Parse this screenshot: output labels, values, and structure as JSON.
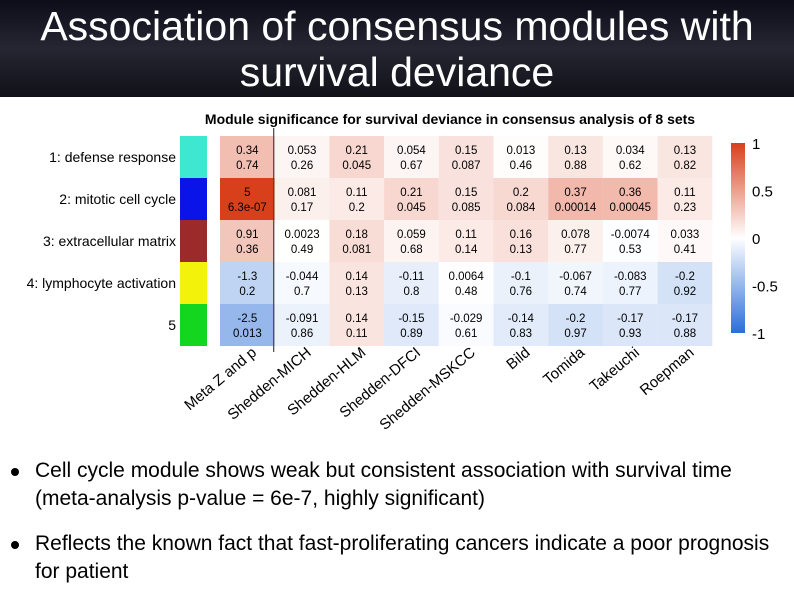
{
  "slide": {
    "title_line_1": "Association of consensus modules with",
    "title_line_2": "survival deviance",
    "bullets": [
      "Cell cycle module shows weak but consistent association with survival time (meta-analysis p-value = 6e-7, highly significant)",
      "Reflects the known fact that fast-proliferating cancers indicate a poor prognosis for patient"
    ]
  },
  "chart_data": {
    "type": "heatmap",
    "title": "Module significance for survival deviance in consensus analysis of 8 sets",
    "columns": [
      "Meta Z and p",
      "Shedden-MICH",
      "Shedden-HLM",
      "Shedden-DFCI",
      "Shedden-MSKCC",
      "Bild",
      "Tomida",
      "Takeuchi",
      "Roepman"
    ],
    "rows": [
      {
        "label": "1: defense response",
        "module_color": "#3ee8d0",
        "cells": [
          [
            "0.34",
            "0.74"
          ],
          [
            "0.053",
            "0.26"
          ],
          [
            "0.21",
            "0.045"
          ],
          [
            "0.054",
            "0.67"
          ],
          [
            "0.15",
            "0.087"
          ],
          [
            "0.013",
            "0.46"
          ],
          [
            "0.13",
            "0.88"
          ],
          [
            "0.034",
            "0.62"
          ],
          [
            "0.13",
            "0.82"
          ]
        ],
        "z": [
          0.34,
          0.053,
          0.21,
          0.054,
          0.15,
          0.013,
          0.13,
          0.034,
          0.13
        ]
      },
      {
        "label": "2: mitotic cell cycle",
        "module_color": "#0a14e8",
        "cells": [
          [
            "5",
            "6.3e-07"
          ],
          [
            "0.081",
            "0.17"
          ],
          [
            "0.11",
            "0.2"
          ],
          [
            "0.21",
            "0.045"
          ],
          [
            "0.15",
            "0.085"
          ],
          [
            "0.2",
            "0.084"
          ],
          [
            "0.37",
            "0.00014"
          ],
          [
            "0.36",
            "0.00045"
          ],
          [
            "0.11",
            "0.23"
          ]
        ],
        "z": [
          1.0,
          0.081,
          0.11,
          0.21,
          0.15,
          0.2,
          0.37,
          0.36,
          0.11
        ]
      },
      {
        "label": "3: extracellular matrix",
        "module_color": "#9c2a2a",
        "cells": [
          [
            "0.91",
            "0.36"
          ],
          [
            "0.0023",
            "0.49"
          ],
          [
            "0.18",
            "0.081"
          ],
          [
            "0.059",
            "0.68"
          ],
          [
            "0.11",
            "0.14"
          ],
          [
            "0.16",
            "0.13"
          ],
          [
            "0.078",
            "0.77"
          ],
          [
            "-0.0074",
            "0.53"
          ],
          [
            "0.033",
            "0.41"
          ]
        ],
        "z": [
          0.3,
          0.0023,
          0.18,
          0.059,
          0.11,
          0.16,
          0.078,
          -0.0074,
          0.033
        ]
      },
      {
        "label": "4: lymphocyte activation",
        "module_color": "#f2f20a",
        "cells": [
          [
            "-1.3",
            "0.2"
          ],
          [
            "-0.044",
            "0.7"
          ],
          [
            "0.14",
            "0.13"
          ],
          [
            "-0.11",
            "0.8"
          ],
          [
            "0.0064",
            "0.48"
          ],
          [
            "-0.1",
            "0.76"
          ],
          [
            "-0.067",
            "0.74"
          ],
          [
            "-0.083",
            "0.77"
          ],
          [
            "-0.2",
            "0.92"
          ]
        ],
        "z": [
          -0.3,
          -0.044,
          0.14,
          -0.11,
          0.0064,
          -0.1,
          -0.067,
          -0.083,
          -0.2
        ]
      },
      {
        "label": "5",
        "module_color": "#14d61e",
        "cells": [
          [
            "-2.5",
            "0.013"
          ],
          [
            "-0.091",
            "0.86"
          ],
          [
            "0.14",
            "0.11"
          ],
          [
            "-0.15",
            "0.89"
          ],
          [
            "-0.029",
            "0.61"
          ],
          [
            "-0.14",
            "0.83"
          ],
          [
            "-0.2",
            "0.97"
          ],
          [
            "-0.17",
            "0.93"
          ],
          [
            "-0.17",
            "0.88"
          ]
        ],
        "z": [
          -0.5,
          -0.091,
          0.14,
          -0.15,
          -0.029,
          -0.14,
          -0.2,
          -0.17,
          -0.17
        ]
      }
    ],
    "colorbar": {
      "ticks": [
        "1",
        "0.5",
        "0",
        "-0.5",
        "-1"
      ],
      "range": [
        -1,
        1
      ]
    },
    "colors": {
      "positive": "#d8401c",
      "neutral": "#ffffff",
      "negative": "#2a6ed8"
    }
  }
}
